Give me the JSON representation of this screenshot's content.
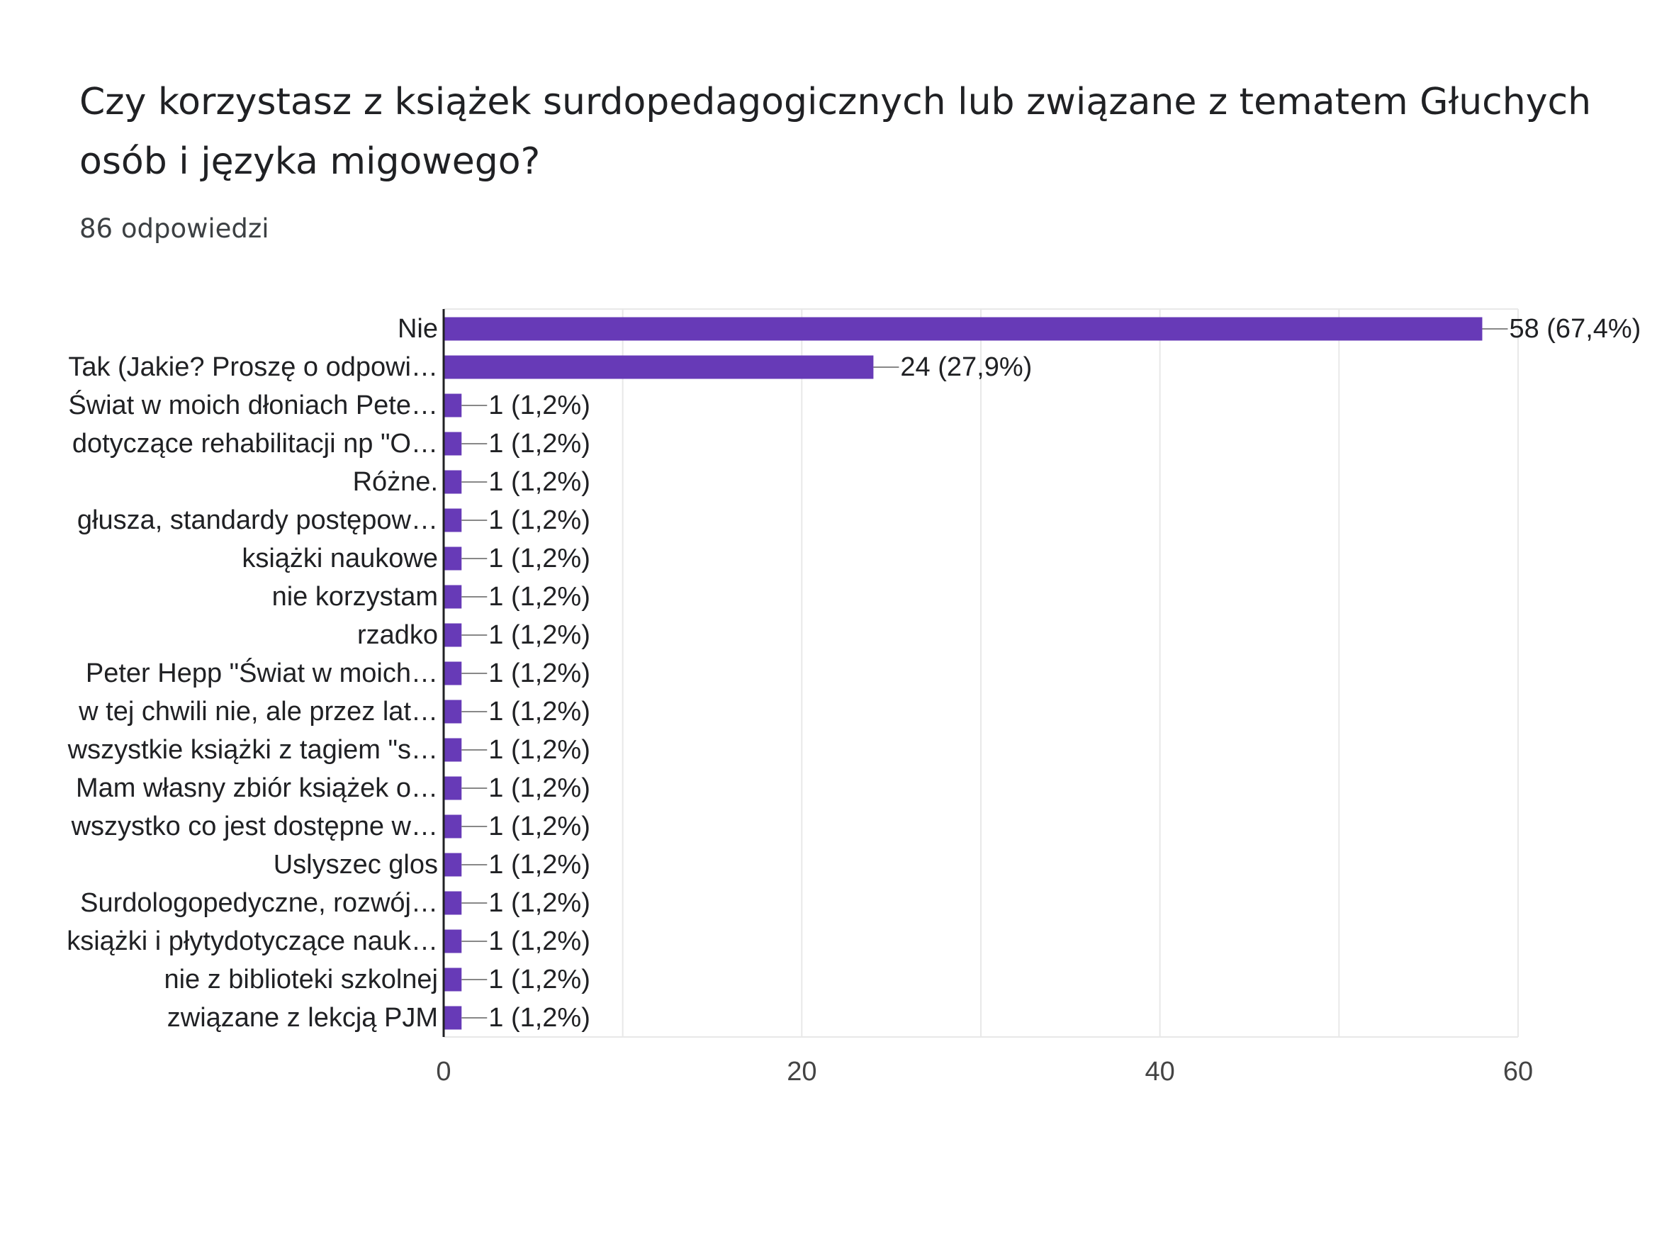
{
  "question": {
    "title": "Czy korzystasz z książek surdopedagogicznych lub związane z tematem Głuchych osób i języka migowego?",
    "response_count": "86 odpowiedzi"
  },
  "colors": {
    "bar": "#673ab7",
    "grid": "#e8e8e8",
    "axis": "#202124",
    "label_text": "#202124",
    "tick_text": "#444444",
    "leader": "#888888"
  },
  "chart_data": {
    "type": "bar",
    "orientation": "horizontal",
    "categories": [
      "Nie",
      "Tak (Jakie? Proszę o odpowi…",
      "Świat w moich dłoniach Pete…",
      "dotyczące rehabilitacji np \"O…",
      "Różne.",
      "głusza, standardy postępow…",
      "książki naukowe",
      "nie korzystam",
      "rzadko",
      "Peter Hepp \"Świat w moich…",
      "w tej chwili nie, ale przez lat…",
      "wszystkie książki z tagiem \"s…",
      "Mam własny zbiór książek o…",
      "wszystko co jest dostępne w…",
      "Uslyszec glos",
      "Surdologopedyczne, rozwój…",
      "książki i płytydotyczące nauk…",
      "nie z biblioteki szkolnej",
      "związane z lekcją PJM"
    ],
    "values": [
      58,
      24,
      1,
      1,
      1,
      1,
      1,
      1,
      1,
      1,
      1,
      1,
      1,
      1,
      1,
      1,
      1,
      1,
      1
    ],
    "data_labels": [
      "58 (67,4%)",
      "24 (27,9%)",
      "1 (1,2%)",
      "1 (1,2%)",
      "1 (1,2%)",
      "1 (1,2%)",
      "1 (1,2%)",
      "1 (1,2%)",
      "1 (1,2%)",
      "1 (1,2%)",
      "1 (1,2%)",
      "1 (1,2%)",
      "1 (1,2%)",
      "1 (1,2%)",
      "1 (1,2%)",
      "1 (1,2%)",
      "1 (1,2%)",
      "1 (1,2%)",
      "1 (1,2%)"
    ],
    "xlim": [
      0,
      60
    ],
    "x_ticks": [
      "0",
      "20",
      "40",
      "60"
    ],
    "minor_gridline_step": 10,
    "grid": true,
    "legend": "none"
  }
}
